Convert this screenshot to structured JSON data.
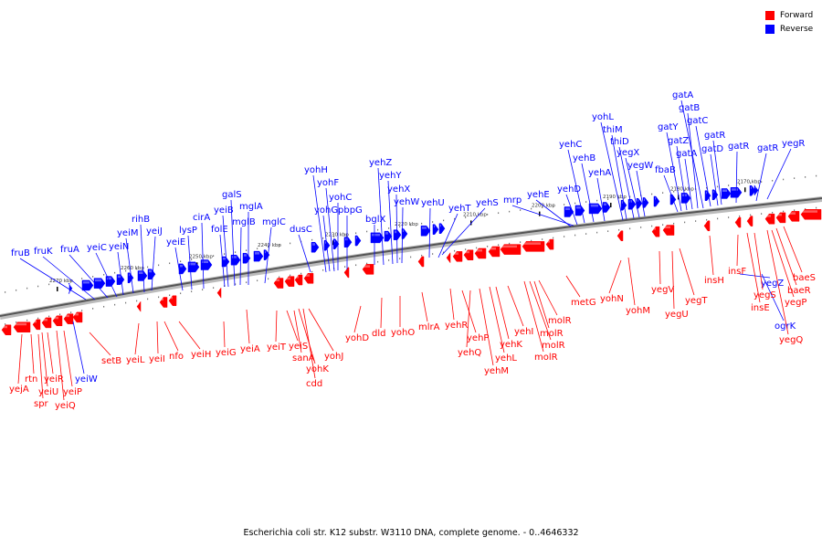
{
  "legend": {
    "forward_label": "Forward",
    "reverse_label": "Reverse",
    "forward_color": "#ff0000",
    "reverse_color": "#0000ff"
  },
  "caption": "Escherichia coli str. K12 substr. W3110 DNA, complete genome. - 0..4646332",
  "kbp_markers": [
    "2270 kbp",
    "2260 kbp",
    "2250 kbp",
    "2240 kbp",
    "2230 kbp",
    "2220 kbp",
    "2210 kbp",
    "2200 kbp",
    "2190 kbp",
    "2180 kbp",
    "2170 kbp"
  ],
  "forward_genes": [
    "yejA",
    "rtn",
    "spr",
    "yeiU",
    "yeiR",
    "yeiQ",
    "yeiP",
    "setB",
    "yeiL",
    "yeiI",
    "nfo",
    "yeiH",
    "yeiG",
    "yeiA",
    "yeiT",
    "yeiS",
    "sanA",
    "yohK",
    "cdd",
    "yohJ",
    "yohD",
    "dld",
    "yohO",
    "mlrA",
    "yehR",
    "yehP",
    "yehQ",
    "yehM",
    "yehL",
    "yehK",
    "yehI",
    "molR",
    "molR",
    "molR",
    "molR",
    "metG",
    "yohN",
    "yohM",
    "yegV",
    "yegU",
    "yegT",
    "insH",
    "insF",
    "insE",
    "yegS",
    "yegQ",
    "yegP",
    "baeR",
    "baeS"
  ],
  "reverse_genes": [
    "fruB",
    "fruK",
    "fruA",
    "yeiC",
    "yeiN",
    "yeiM",
    "rihB",
    "yeiJ",
    "yeiE",
    "lysP",
    "cirA",
    "folE",
    "yeiB",
    "galS",
    "mglB",
    "mglA",
    "mglC",
    "dusC",
    "yohH",
    "yohG",
    "yohF",
    "yohC",
    "pbpG",
    "bglX",
    "yehZ",
    "yehY",
    "yehX",
    "yehW",
    "yehU",
    "yehT",
    "yehS",
    "mrp",
    "yehE",
    "yehD",
    "yehC",
    "yehB",
    "yehA",
    "thiM",
    "yohL",
    "thiD",
    "yegX",
    "yegW",
    "fbaB",
    "gatY",
    "gatZ",
    "gatA",
    "gatB",
    "gatA",
    "gatC",
    "gatD",
    "gatR",
    "gatR",
    "gatR",
    "yegR",
    "yeiW",
    "yegZ",
    "ogrK"
  ]
}
